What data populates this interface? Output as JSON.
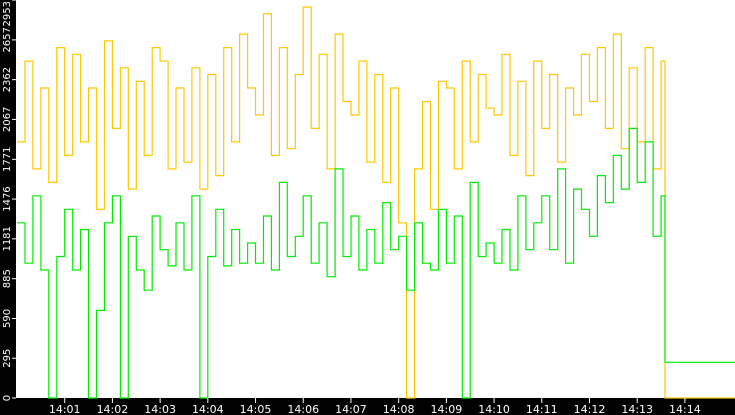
{
  "chart_data": {
    "type": "line",
    "title": "",
    "xlabel": "",
    "ylabel": "",
    "xlim": [
      "14:00:00",
      "14:15:03"
    ],
    "ylim": [
      0,
      2953
    ],
    "grid": false,
    "legend": "none",
    "background": "#ffffff",
    "y_ticks": [
      "0",
      "295",
      "590",
      "885",
      "1181",
      "1476",
      "1771",
      "2067",
      "2362",
      "2657",
      "2953"
    ],
    "x_ticks": [
      "14:01",
      "14:02",
      "14:03",
      "14:04",
      "14:05",
      "14:06",
      "14:07",
      "14:08",
      "14:09",
      "14:10",
      "14:11",
      "14:12",
      "14:13",
      "14:14"
    ],
    "x": [
      "14:00:00",
      "14:00:10",
      "14:00:20",
      "14:00:30",
      "14:00:40",
      "14:00:50",
      "14:01:00",
      "14:01:10",
      "14:01:20",
      "14:01:30",
      "14:01:40",
      "14:01:50",
      "14:02:00",
      "14:02:10",
      "14:02:20",
      "14:02:30",
      "14:02:40",
      "14:02:50",
      "14:03:00",
      "14:03:10",
      "14:03:20",
      "14:03:30",
      "14:03:40",
      "14:03:50",
      "14:04:00",
      "14:04:10",
      "14:04:20",
      "14:04:30",
      "14:04:40",
      "14:04:50",
      "14:05:00",
      "14:05:10",
      "14:05:20",
      "14:05:30",
      "14:05:40",
      "14:05:50",
      "14:06:00",
      "14:06:10",
      "14:06:20",
      "14:06:30",
      "14:06:40",
      "14:06:50",
      "14:07:00",
      "14:07:10",
      "14:07:20",
      "14:07:30",
      "14:07:40",
      "14:07:50",
      "14:08:00",
      "14:08:10",
      "14:08:20",
      "14:08:30",
      "14:08:40",
      "14:08:50",
      "14:09:00",
      "14:09:10",
      "14:09:20",
      "14:09:30",
      "14:09:40",
      "14:09:50",
      "14:10:00",
      "14:10:10",
      "14:10:20",
      "14:10:30",
      "14:10:40",
      "14:10:50",
      "14:11:00",
      "14:11:10",
      "14:11:20",
      "14:11:30",
      "14:11:40",
      "14:11:50",
      "14:12:00",
      "14:12:10",
      "14:12:20",
      "14:12:30",
      "14:12:40",
      "14:12:50",
      "14:13:00",
      "14:13:10",
      "14:13:20",
      "14:13:30",
      "14:13:35",
      "14:15:03"
    ],
    "series": [
      {
        "color": "#ffc800",
        "values": [
          1900,
          2500,
          1700,
          2300,
          1600,
          2600,
          1800,
          2550,
          1900,
          2300,
          1400,
          2650,
          2000,
          2450,
          1550,
          2350,
          1800,
          2600,
          2500,
          1700,
          2300,
          1750,
          2450,
          1550,
          2400,
          1650,
          2600,
          1900,
          2700,
          2300,
          2100,
          2850,
          1800,
          2600,
          1850,
          2400,
          2900,
          2000,
          2550,
          1700,
          2700,
          2200,
          2100,
          2500,
          1750,
          2400,
          1600,
          2300,
          1300,
          0,
          1700,
          2200,
          1400,
          2350,
          2300,
          1700,
          2500,
          1900,
          2400,
          2150,
          2100,
          2550,
          1800,
          2350,
          1650,
          2500,
          2000,
          2400,
          1750,
          2300,
          2100,
          2550,
          2200,
          2600,
          2000,
          2700,
          1850,
          2450,
          1900,
          2600,
          1700,
          2500,
          0,
          0
        ]
      },
      {
        "color": "#00ee00",
        "values": [
          1300,
          1000,
          1500,
          950,
          0,
          1050,
          1400,
          950,
          1250,
          0,
          650,
          1300,
          1500,
          0,
          1200,
          950,
          800,
          1350,
          1100,
          980,
          1300,
          950,
          1500,
          0,
          1050,
          1400,
          980,
          1250,
          1000,
          1150,
          1000,
          1350,
          950,
          1600,
          1050,
          1200,
          1500,
          1000,
          1300,
          900,
          1700,
          1050,
          1350,
          950,
          1250,
          1000,
          1450,
          1100,
          1200,
          800,
          1300,
          1000,
          950,
          1400,
          1000,
          1350,
          0,
          1600,
          1050,
          1150,
          1000,
          1250,
          950,
          1500,
          1100,
          1300,
          1500,
          1100,
          1700,
          1000,
          1550,
          1400,
          1200,
          1650,
          1450,
          1800,
          1550,
          2000,
          1600,
          1900,
          1200,
          1500,
          265,
          265
        ]
      }
    ]
  }
}
